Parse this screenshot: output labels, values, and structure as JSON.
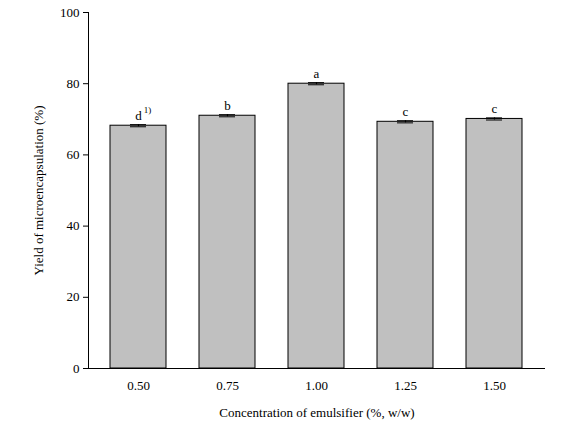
{
  "chart_data": {
    "type": "bar",
    "x_label": "Concentration of emulsifier (%, w/w)",
    "y_label": "Yield of microencapsulation (%)",
    "categories": [
      "0.50",
      "0.75",
      "1.00",
      "1.25",
      "1.50"
    ],
    "values": [
      68.2,
      71.0,
      80.0,
      69.3,
      70.1
    ],
    "errors": [
      0.3,
      0.3,
      0.3,
      0.3,
      0.3
    ],
    "letters": [
      {
        "text": "d",
        "superscript": "1)"
      },
      {
        "text": "b"
      },
      {
        "text": "a"
      },
      {
        "text": "c"
      },
      {
        "text": "c"
      }
    ],
    "color": "#c0c0c0",
    "ylim": [
      0,
      100
    ],
    "yticks": [
      0,
      20,
      40,
      60,
      80,
      100
    ],
    "grid": false
  }
}
